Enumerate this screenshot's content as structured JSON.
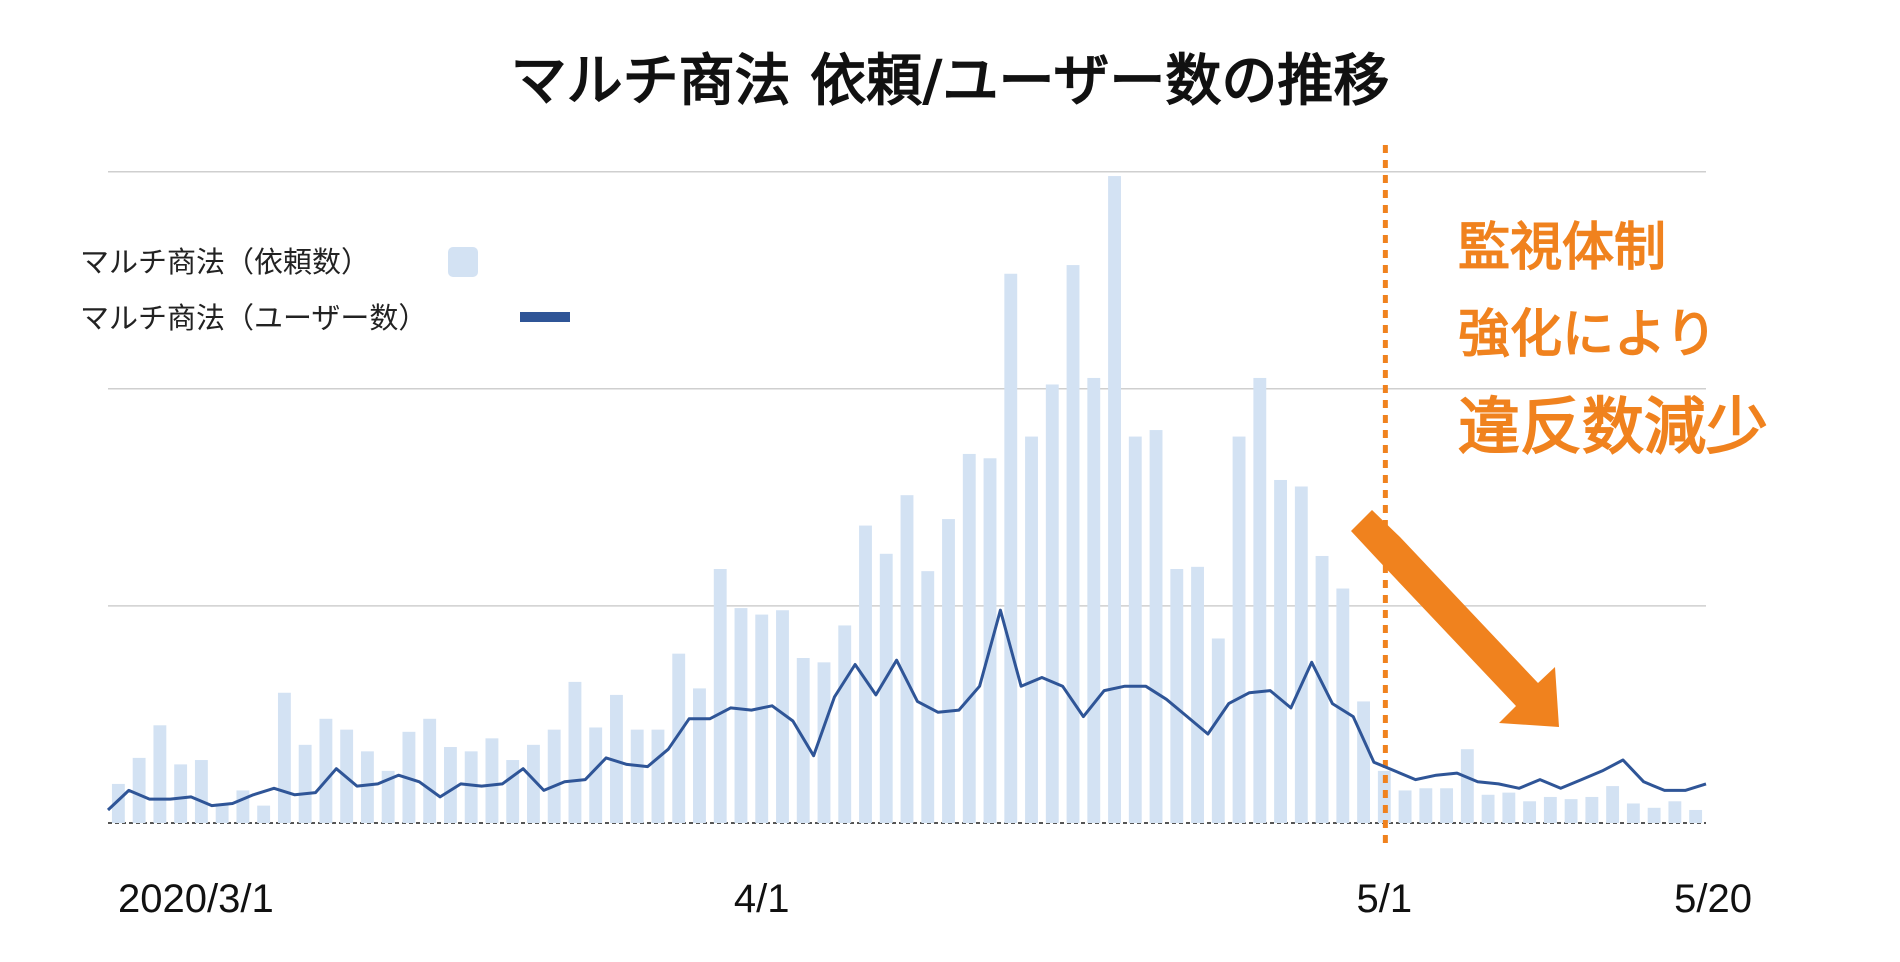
{
  "chart_data": {
    "type": "bar+line",
    "title": "マルチ商法 依頼/ユーザー数の推移",
    "legend": {
      "placement": "top-left",
      "entries": [
        {
          "label": "マルチ商法（依頼数）",
          "kind": "bar"
        },
        {
          "label": "マルチ商法（ユーザー数）",
          "kind": "line"
        }
      ]
    },
    "x_ticks": [
      "2020/3/1",
      "4/1",
      "5/1",
      "5/20"
    ],
    "x_tick_day_index": [
      0,
      31,
      61,
      80
    ],
    "y_axis": {
      "ylim": [
        0,
        31
      ],
      "tick_labels_shown": false,
      "gridlines": [
        0,
        10,
        20,
        30
      ]
    },
    "grid": true,
    "series": [
      {
        "name": "マルチ商法（依頼数）",
        "type": "bar",
        "color": "#d3e2f3",
        "values": [
          1.8,
          3.0,
          4.5,
          2.7,
          2.9,
          0.9,
          1.5,
          0.8,
          6.0,
          3.6,
          4.8,
          4.3,
          3.3,
          2.4,
          4.2,
          4.8,
          3.5,
          3.3,
          3.9,
          2.9,
          3.6,
          4.3,
          6.5,
          4.4,
          5.9,
          4.3,
          4.3,
          7.8,
          6.2,
          11.7,
          9.9,
          9.6,
          9.8,
          7.6,
          7.4,
          9.1,
          13.7,
          12.4,
          15.1,
          11.6,
          14.0,
          17.0,
          16.8,
          25.3,
          17.8,
          20.2,
          25.7,
          20.5,
          29.8,
          17.8,
          18.1,
          11.7,
          11.8,
          8.5,
          17.8,
          20.5,
          15.8,
          15.5,
          12.3,
          10.8,
          5.6,
          2.4,
          1.5,
          1.6,
          1.6,
          3.4,
          1.3,
          1.4,
          1.0,
          1.2,
          1.1,
          1.2,
          1.7,
          0.9,
          0.7,
          1.0,
          0.6
        ]
      },
      {
        "name": "マルチ商法（ユーザー数）",
        "type": "line",
        "color": "#2f5597",
        "values": [
          0.6,
          1.5,
          1.1,
          1.1,
          1.2,
          0.8,
          0.9,
          1.3,
          1.6,
          1.3,
          1.4,
          2.5,
          1.7,
          1.8,
          2.2,
          1.9,
          1.2,
          1.8,
          1.7,
          1.8,
          2.5,
          1.5,
          1.9,
          2.0,
          3.0,
          2.7,
          2.6,
          3.4,
          4.8,
          4.8,
          5.3,
          5.2,
          5.4,
          4.7,
          3.1,
          5.8,
          7.3,
          5.9,
          7.5,
          5.6,
          5.1,
          5.2,
          6.3,
          9.8,
          6.3,
          6.7,
          6.3,
          4.9,
          6.1,
          6.3,
          6.3,
          5.7,
          4.9,
          4.1,
          5.5,
          6.0,
          6.1,
          5.3,
          7.4,
          5.5,
          4.9,
          2.8,
          2.4,
          2.0,
          2.2,
          2.3,
          1.9,
          1.8,
          1.6,
          2.0,
          1.6,
          2.0,
          2.4,
          2.9,
          1.9,
          1.5,
          1.5,
          1.8
        ]
      }
    ],
    "annotations": {
      "marker_label_day_index": 61,
      "marker_color": "#f0821e",
      "callout_lines": [
        "監視体制",
        "強化により",
        "違反数減少"
      ],
      "callout_color": "#f0821e",
      "arrow": "down-right",
      "arrow_color": "#f0821e"
    }
  }
}
